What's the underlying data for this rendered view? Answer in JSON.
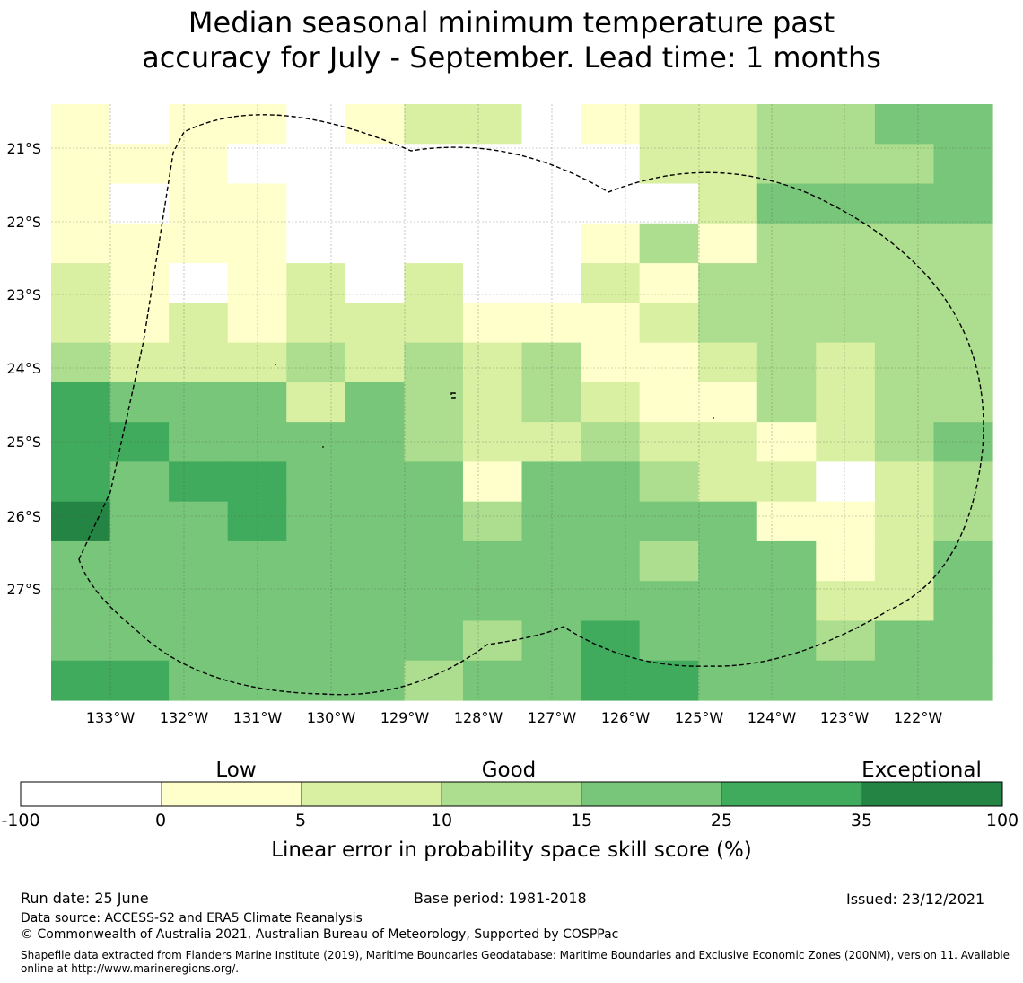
{
  "title_lines": [
    "Median seasonal minimum temperature past",
    "accuracy for July - September. Lead time: 1 months"
  ],
  "map": {
    "lon_labels": [
      "133°W",
      "132°W",
      "131°W",
      "130°W",
      "129°W",
      "128°W",
      "127°W",
      "126°W",
      "125°W",
      "124°W",
      "123°W",
      "122°W"
    ],
    "lat_labels": [
      "21°S",
      "22°S",
      "23°S",
      "24°S",
      "25°S",
      "26°S",
      "27°S"
    ],
    "grid_note": "Skill class per grid cell: 0=-100..0, 1=0..5, 2=5..10, 3=10..15, 4=15..25, 5=25..35, 6=35..100",
    "grid": [
      [
        1,
        0,
        1,
        1,
        0,
        1,
        2,
        2,
        0,
        1,
        2,
        2,
        3,
        3,
        4,
        4
      ],
      [
        1,
        1,
        1,
        0,
        0,
        0,
        0,
        0,
        0,
        0,
        2,
        2,
        3,
        3,
        3,
        4
      ],
      [
        1,
        0,
        1,
        1,
        0,
        0,
        0,
        0,
        0,
        0,
        0,
        2,
        4,
        4,
        4,
        4
      ],
      [
        1,
        1,
        1,
        1,
        0,
        0,
        0,
        0,
        0,
        1,
        3,
        1,
        3,
        3,
        3,
        3
      ],
      [
        2,
        1,
        0,
        1,
        2,
        0,
        2,
        0,
        0,
        2,
        1,
        3,
        3,
        3,
        3,
        3
      ],
      [
        2,
        1,
        2,
        1,
        2,
        2,
        2,
        1,
        1,
        1,
        2,
        3,
        3,
        3,
        3,
        3
      ],
      [
        3,
        2,
        2,
        2,
        3,
        2,
        3,
        2,
        3,
        1,
        1,
        2,
        3,
        2,
        3,
        3
      ],
      [
        5,
        4,
        4,
        4,
        2,
        4,
        3,
        2,
        3,
        2,
        1,
        1,
        3,
        2,
        3,
        3
      ],
      [
        5,
        5,
        4,
        4,
        4,
        4,
        3,
        2,
        2,
        3,
        2,
        2,
        1,
        2,
        3,
        4
      ],
      [
        5,
        4,
        5,
        5,
        4,
        4,
        4,
        1,
        4,
        4,
        3,
        2,
        2,
        0,
        2,
        3
      ],
      [
        6,
        4,
        4,
        5,
        4,
        4,
        4,
        3,
        4,
        4,
        4,
        4,
        1,
        1,
        2,
        3
      ],
      [
        4,
        4,
        4,
        4,
        4,
        4,
        4,
        4,
        4,
        4,
        3,
        4,
        4,
        1,
        2,
        4
      ],
      [
        4,
        4,
        4,
        4,
        4,
        4,
        4,
        4,
        4,
        4,
        4,
        4,
        4,
        2,
        2,
        4
      ],
      [
        4,
        4,
        4,
        4,
        4,
        4,
        4,
        3,
        4,
        5,
        4,
        4,
        4,
        3,
        4,
        4
      ],
      [
        5,
        5,
        4,
        4,
        4,
        4,
        3,
        4,
        4,
        5,
        5,
        4,
        4,
        4,
        4,
        4
      ]
    ]
  },
  "legend": {
    "category_labels": [
      "Low",
      "Good",
      "Exceptional"
    ],
    "ticks": [
      "-100",
      "0",
      "5",
      "10",
      "15",
      "25",
      "35",
      "100"
    ],
    "colors": [
      "#ffffff",
      "#ffffcc",
      "#d9f0a3",
      "#addd8e",
      "#78c679",
      "#41ab5d",
      "#238443"
    ],
    "axis_label": "Linear error in probability space skill score (%)"
  },
  "footer": {
    "run_date": "Run date: 25 June",
    "base_period": "Base period: 1981-2018",
    "issued": "Issued: 23/12/2021",
    "data_source": "Data source: ACCESS-S2 and ERA5 Climate Reanalysis",
    "copyright": "© Commonwealth of Australia 2021, Australian Bureau of Meteorology, Supported by COSPPac",
    "shapefile": "Shapefile data extracted from Flanders Marine Institute (2019), Maritime Boundaries Geodatabase: Maritime Boundaries and Exclusive Economic Zones (200NM), version 11. Available online at http://www.marineregions.org/."
  }
}
